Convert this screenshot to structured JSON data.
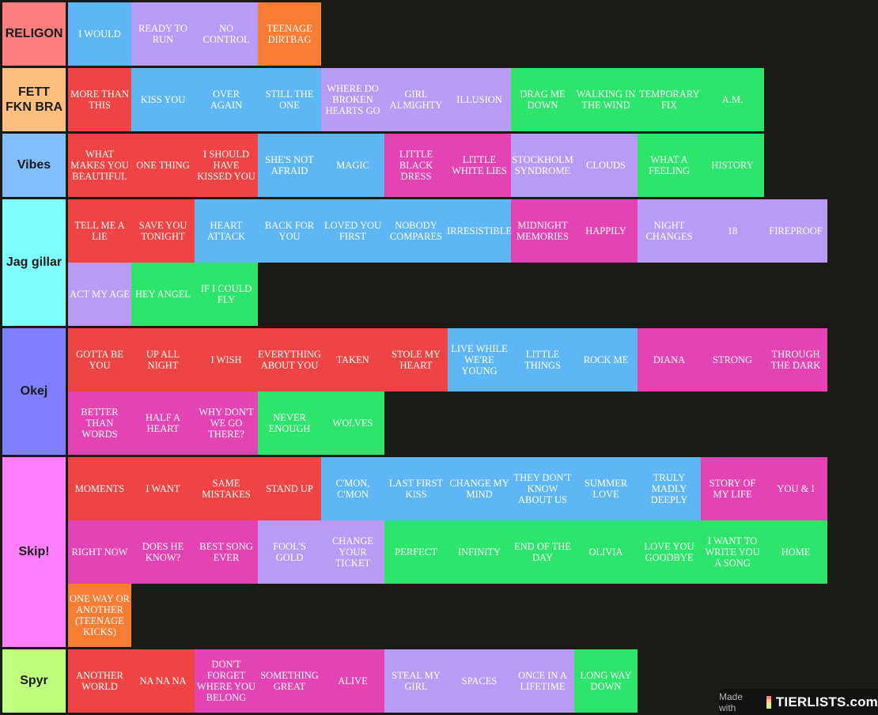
{
  "colors": {
    "background": "#1a1a17",
    "red": "#ef4444",
    "blue": "#5fb6f5",
    "purple": "#b79bf5",
    "orange": "#f97c34",
    "pink": "#e444b3",
    "green": "#2ee56c"
  },
  "tiers": [
    {
      "label": "RELIGON",
      "color": "#ff7f7f",
      "items": [
        {
          "text": "I WOULD",
          "color": "blue"
        },
        {
          "text": "READY TO RUN",
          "color": "purple"
        },
        {
          "text": "NO CONTROL",
          "color": "purple"
        },
        {
          "text": "TEENAGE DIRTBAG",
          "color": "orange"
        }
      ]
    },
    {
      "label": "FETT FKN BRA",
      "color": "#ffbf7f",
      "items": [
        {
          "text": "MORE THAN THIS",
          "color": "red"
        },
        {
          "text": "KISS YOU",
          "color": "blue"
        },
        {
          "text": "OVER AGAIN",
          "color": "blue"
        },
        {
          "text": "STILL THE ONE",
          "color": "blue"
        },
        {
          "text": "WHERE DO BROKEN HEARTS GO",
          "color": "purple"
        },
        {
          "text": "GIRL ALMIGHTY",
          "color": "purple"
        },
        {
          "text": "ILLUSION",
          "color": "purple"
        },
        {
          "text": "DRAG ME DOWN",
          "color": "green"
        },
        {
          "text": "WALKING IN THE WIND",
          "color": "green"
        },
        {
          "text": "TEMPORARY FIX",
          "color": "green"
        },
        {
          "text": "A.M.",
          "color": "green"
        }
      ]
    },
    {
      "label": "Vibes",
      "color": "#80bfff",
      "items": [
        {
          "text": "WHAT MAKES YOU BEAUTIFUL",
          "color": "red"
        },
        {
          "text": "ONE THING",
          "color": "red"
        },
        {
          "text": "I SHOULD HAVE KISSED YOU",
          "color": "red"
        },
        {
          "text": "SHE'S NOT AFRAID",
          "color": "blue"
        },
        {
          "text": "MAGIC",
          "color": "blue"
        },
        {
          "text": "LITTLE BLACK DRESS",
          "color": "pink"
        },
        {
          "text": "LITTLE WHITE LIES",
          "color": "pink"
        },
        {
          "text": "STOCKHOLM SYNDROME",
          "color": "purple"
        },
        {
          "text": "CLOUDS",
          "color": "purple"
        },
        {
          "text": "WHAT A FEELING",
          "color": "green"
        },
        {
          "text": "HISTORY",
          "color": "green"
        }
      ]
    },
    {
      "label": "Jag gillar",
      "color": "#7fffff",
      "items": [
        {
          "text": "TELL ME A LIE",
          "color": "red"
        },
        {
          "text": "SAVE YOU TONIGHT",
          "color": "red"
        },
        {
          "text": "HEART ATTACK",
          "color": "blue"
        },
        {
          "text": "BACK FOR YOU",
          "color": "blue"
        },
        {
          "text": "LOVED YOU FIRST",
          "color": "blue"
        },
        {
          "text": "NOBODY COMPARES",
          "color": "blue"
        },
        {
          "text": "IRRESISTIBLE",
          "color": "blue"
        },
        {
          "text": "MIDNIGHT MEMORIES",
          "color": "pink"
        },
        {
          "text": "HAPPILY",
          "color": "pink"
        },
        {
          "text": "NIGHT CHANGES",
          "color": "purple"
        },
        {
          "text": "18",
          "color": "purple"
        },
        {
          "text": "FIREPROOF",
          "color": "purple"
        },
        {
          "text": "ACT MY AGE",
          "color": "purple"
        },
        {
          "text": "HEY ANGEL",
          "color": "green"
        },
        {
          "text": "IF I COULD FLY",
          "color": "green"
        }
      ]
    },
    {
      "label": "Okej",
      "color": "#7f7fff",
      "items": [
        {
          "text": "GOTTA BE YOU",
          "color": "red"
        },
        {
          "text": "UP ALL NIGHT",
          "color": "red"
        },
        {
          "text": "I WISH",
          "color": "red"
        },
        {
          "text": "EVERYTHING ABOUT YOU",
          "color": "red"
        },
        {
          "text": "TAKEN",
          "color": "red"
        },
        {
          "text": "STOLE MY HEART",
          "color": "red"
        },
        {
          "text": "LIVE WHILE WE'RE YOUNG",
          "color": "blue"
        },
        {
          "text": "LITTLE THINGS",
          "color": "blue"
        },
        {
          "text": "ROCK ME",
          "color": "blue"
        },
        {
          "text": "DIANA",
          "color": "pink"
        },
        {
          "text": "STRONG",
          "color": "pink"
        },
        {
          "text": "THROUGH THE DARK",
          "color": "pink"
        },
        {
          "text": "BETTER THAN WORDS",
          "color": "pink"
        },
        {
          "text": "HALF A HEART",
          "color": "pink"
        },
        {
          "text": "WHY DON'T WE GO THERE?",
          "color": "pink"
        },
        {
          "text": "NEVER ENOUGH",
          "color": "green"
        },
        {
          "text": "WOLVES",
          "color": "green"
        }
      ]
    },
    {
      "label": "Skip!",
      "color": "#ff7fff",
      "items": [
        {
          "text": "MOMENTS",
          "color": "red"
        },
        {
          "text": "I WANT",
          "color": "red"
        },
        {
          "text": "SAME MISTAKES",
          "color": "red"
        },
        {
          "text": "STAND UP",
          "color": "red"
        },
        {
          "text": "C'MON, C'MON",
          "color": "blue"
        },
        {
          "text": "LAST FIRST KISS",
          "color": "blue"
        },
        {
          "text": "CHANGE MY MIND",
          "color": "blue"
        },
        {
          "text": "THEY DON'T KNOW ABOUT US",
          "color": "blue"
        },
        {
          "text": "SUMMER LOVE",
          "color": "blue"
        },
        {
          "text": "TRULY MADLY DEEPLY",
          "color": "blue"
        },
        {
          "text": "STORY OF MY LIFE",
          "color": "pink"
        },
        {
          "text": "YOU & I",
          "color": "pink"
        },
        {
          "text": "RIGHT NOW",
          "color": "pink"
        },
        {
          "text": "DOES HE KNOW?",
          "color": "pink"
        },
        {
          "text": "BEST SONG EVER",
          "color": "pink"
        },
        {
          "text": "FOOL'S GOLD",
          "color": "purple"
        },
        {
          "text": "CHANGE YOUR TICKET",
          "color": "purple"
        },
        {
          "text": "PERFECT",
          "color": "green"
        },
        {
          "text": "INFINITY",
          "color": "green"
        },
        {
          "text": "END OF THE DAY",
          "color": "green"
        },
        {
          "text": "OLIVIA",
          "color": "green"
        },
        {
          "text": "LOVE YOU GOODBYE",
          "color": "green"
        },
        {
          "text": "I WANT TO WRITE YOU A SONG",
          "color": "green"
        },
        {
          "text": "HOME",
          "color": "green"
        },
        {
          "text": "ONE WAY OR ANOTHER (TEENAGE KICKS)",
          "color": "orange"
        }
      ]
    },
    {
      "label": "Spyr",
      "color": "#bfff7f",
      "items": [
        {
          "text": "ANOTHER WORLD",
          "color": "red"
        },
        {
          "text": "NA NA NA",
          "color": "red"
        },
        {
          "text": "DON'T FORGET WHERE YOU BELONG",
          "color": "pink"
        },
        {
          "text": "SOMETHING GREAT",
          "color": "pink"
        },
        {
          "text": "ALIVE",
          "color": "pink"
        },
        {
          "text": "STEAL MY GIRL",
          "color": "purple"
        },
        {
          "text": "SPACES",
          "color": "purple"
        },
        {
          "text": "ONCE IN A LIFETIME",
          "color": "purple"
        },
        {
          "text": "LONG WAY DOWN",
          "color": "green"
        }
      ]
    }
  ],
  "credit": {
    "made_with": "Made with",
    "brand": "TIERLISTS.com",
    "logo_colors": [
      "#ff7f7f",
      "#ffbf7f",
      "#ffdf7f",
      "#bfff7f"
    ]
  }
}
